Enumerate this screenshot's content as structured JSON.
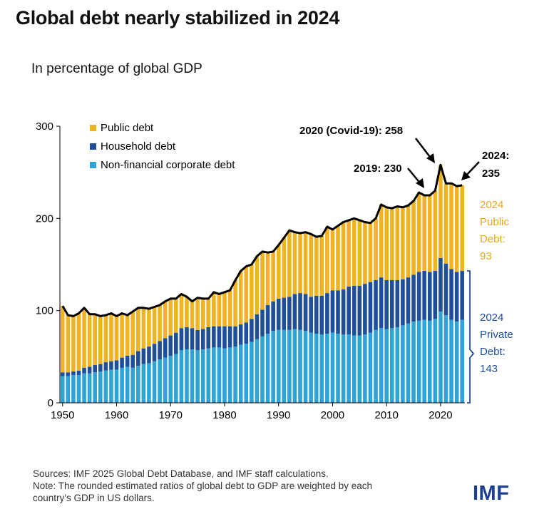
{
  "header": {
    "title": "Global debt nearly stabilized in 2024",
    "subtitle": "In percentage of global GDP"
  },
  "footer": {
    "sources": "Sources: IMF 2025 Global Debt Database, and IMF staff calculations.",
    "note_line1": "Note: The rounded estimated ratios of global debt to GDP are weighted by each",
    "note_line2": "country’s GDP in US dollars.",
    "logo": "IMF"
  },
  "colors": {
    "public": "#f0b323",
    "household": "#1f4e9a",
    "corporate": "#2ea3d8",
    "total_line": "#000000",
    "public_label": "#e6a817",
    "private_label": "#1f4e9a"
  },
  "chart_data": {
    "type": "bar",
    "stacked": true,
    "ylim": [
      0,
      300
    ],
    "yticks": [
      0,
      100,
      200,
      300
    ],
    "xticks": [
      1950,
      1960,
      1970,
      1980,
      1990,
      2000,
      2010,
      2020
    ],
    "legend": {
      "placement": "top-left",
      "entries": [
        "Public debt",
        "Household debt",
        "Non-financial corporate debt"
      ]
    },
    "x": [
      1950,
      1951,
      1952,
      1953,
      1954,
      1955,
      1956,
      1957,
      1958,
      1959,
      1960,
      1961,
      1962,
      1963,
      1964,
      1965,
      1966,
      1967,
      1968,
      1969,
      1970,
      1971,
      1972,
      1973,
      1974,
      1975,
      1976,
      1977,
      1978,
      1979,
      1980,
      1981,
      1982,
      1983,
      1984,
      1985,
      1986,
      1987,
      1988,
      1989,
      1990,
      1991,
      1992,
      1993,
      1994,
      1995,
      1996,
      1997,
      1998,
      1999,
      2000,
      2001,
      2002,
      2003,
      2004,
      2005,
      2006,
      2007,
      2008,
      2009,
      2010,
      2011,
      2012,
      2013,
      2014,
      2015,
      2016,
      2017,
      2018,
      2019,
      2020,
      2021,
      2022,
      2023,
      2024
    ],
    "series": [
      {
        "name": "Non-financial corporate debt",
        "key": "corporate",
        "values": [
          29,
          29,
          30,
          30,
          32,
          32,
          33,
          34,
          35,
          36,
          36,
          38,
          39,
          38,
          40,
          42,
          43,
          45,
          47,
          49,
          51,
          53,
          57,
          58,
          58,
          57,
          58,
          59,
          60,
          60,
          59,
          60,
          61,
          63,
          64,
          66,
          69,
          72,
          75,
          78,
          79,
          79,
          79,
          80,
          79,
          78,
          76,
          75,
          74,
          75,
          76,
          75,
          74,
          74,
          73,
          73,
          74,
          76,
          79,
          81,
          80,
          81,
          82,
          84,
          86,
          88,
          89,
          90,
          89,
          91,
          99,
          95,
          90,
          88,
          90
        ]
      },
      {
        "name": "Household debt",
        "key": "household",
        "values": [
          4,
          4,
          4,
          5,
          6,
          7,
          8,
          8,
          9,
          9,
          10,
          11,
          12,
          14,
          16,
          17,
          18,
          19,
          20,
          21,
          22,
          23,
          24,
          24,
          23,
          22,
          22,
          23,
          23,
          23,
          24,
          23,
          22,
          22,
          23,
          25,
          27,
          29,
          31,
          32,
          34,
          35,
          36,
          38,
          40,
          40,
          39,
          41,
          42,
          44,
          46,
          47,
          49,
          52,
          54,
          54,
          55,
          55,
          54,
          55,
          53,
          52,
          51,
          50,
          50,
          51,
          53,
          53,
          53,
          52,
          58,
          56,
          55,
          54,
          53
        ]
      },
      {
        "name": "Public debt",
        "key": "public",
        "values": [
          72,
          62,
          60,
          62,
          65,
          57,
          55,
          52,
          51,
          52,
          48,
          48,
          44,
          47,
          47,
          44,
          41,
          40,
          39,
          40,
          40,
          37,
          37,
          33,
          29,
          35,
          33,
          31,
          37,
          35,
          37,
          39,
          50,
          58,
          61,
          59,
          63,
          63,
          57,
          54,
          58,
          65,
          72,
          67,
          65,
          67,
          68,
          64,
          65,
          72,
          66,
          70,
          73,
          72,
          73,
          71,
          67,
          64,
          67,
          79,
          79,
          78,
          80,
          78,
          78,
          80,
          86,
          82,
          83,
          87,
          101,
          87,
          93,
          93,
          93
        ]
      }
    ],
    "annotations": {
      "covid": "2020 (Covid-19): 258",
      "y2019": "2019: 230",
      "y2024_line1": "2024:",
      "y2024_line2": "235",
      "public_line1": "2024",
      "public_line2": "Public",
      "public_line3": "Debt:",
      "public_line4": "93",
      "private_line1": "2024",
      "private_line2": "Private",
      "private_line3": "Debt:",
      "private_line4": "143"
    }
  }
}
